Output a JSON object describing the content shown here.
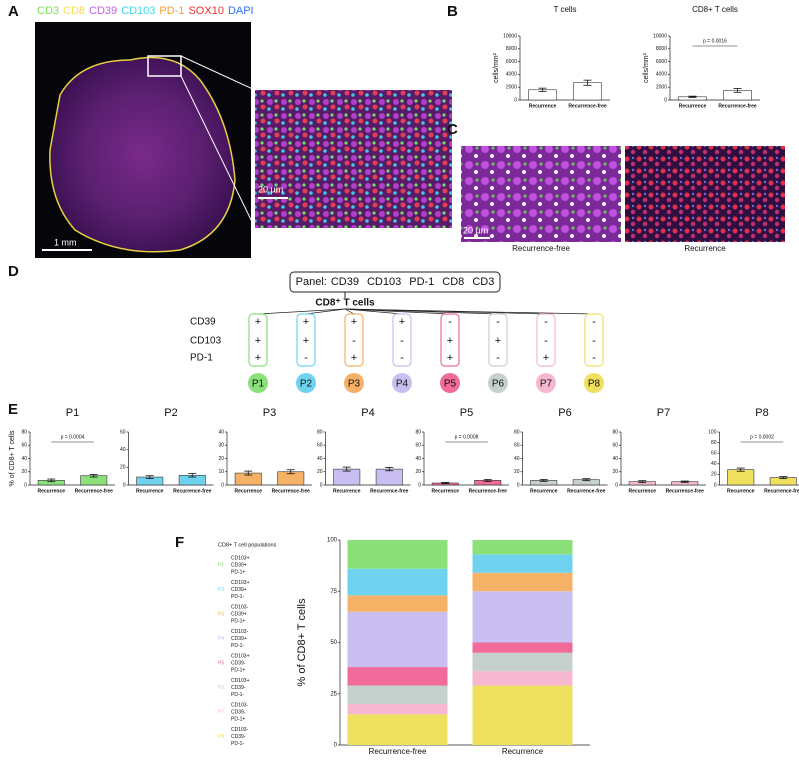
{
  "panel_labels": [
    "A",
    "B",
    "C",
    "D",
    "E",
    "F"
  ],
  "panel_a": {
    "channels": [
      {
        "label": "CD3",
        "color": "#7be05a"
      },
      {
        "label": "CD8",
        "color": "#f2e04a"
      },
      {
        "label": "CD39",
        "color": "#c060e0"
      },
      {
        "label": "CD103",
        "color": "#40d8e8"
      },
      {
        "label": "PD-1",
        "color": "#f5a030"
      },
      {
        "label": "SOX10",
        "color": "#f03030"
      },
      {
        "label": "DAPI",
        "color": "#3070f0"
      }
    ],
    "scale_bar": "1 mm",
    "inset_scale_bar": "20 µm"
  },
  "panel_c": {
    "scale_bar": "20 µm",
    "captions": [
      "Recurrence-free",
      "Recurrence"
    ]
  },
  "panel_d": {
    "panel_title": "Panel:",
    "panel_markers": [
      "CD39",
      "CD103",
      "PD-1",
      "CD8",
      "CD3"
    ],
    "root": "CD8⁺ T cells",
    "markers": [
      "CD39",
      "CD103",
      "PD-1"
    ],
    "populations": [
      {
        "name": "P1",
        "color": "#8be07a",
        "signs": [
          "+",
          "+",
          "+"
        ]
      },
      {
        "name": "P2",
        "color": "#6fd3f0",
        "signs": [
          "+",
          "+",
          "-"
        ]
      },
      {
        "name": "P3",
        "color": "#f5b266",
        "signs": [
          "+",
          "-",
          "+"
        ]
      },
      {
        "name": "P4",
        "color": "#c8bff0",
        "signs": [
          "+",
          "-",
          "-"
        ]
      },
      {
        "name": "P5",
        "color": "#f06a9a",
        "signs": [
          "-",
          "+",
          "+"
        ]
      },
      {
        "name": "P6",
        "color": "#c6d0cc",
        "signs": [
          "-",
          "+",
          "-"
        ]
      },
      {
        "name": "P7",
        "color": "#f5b8d0",
        "signs": [
          "-",
          "-",
          "+"
        ]
      },
      {
        "name": "P8",
        "color": "#f0e060",
        "signs": [
          "-",
          "-",
          "-"
        ]
      }
    ]
  },
  "chart_data": [
    {
      "type": "bar",
      "title": "T cells",
      "ylabel": "cells/mm²",
      "categories": [
        "Recurrence",
        "Recurrence-free"
      ],
      "values": [
        1600,
        2700
      ],
      "errors": [
        250,
        400
      ],
      "color": "#ffffff",
      "ylim": [
        0,
        10000
      ],
      "yticks": [
        0,
        2000,
        4000,
        6000,
        8000,
        10000
      ]
    },
    {
      "type": "bar",
      "title": "CD8+ T cells",
      "ylabel": "cells/mm²",
      "categories": [
        "Recurrence",
        "Recurrence-free"
      ],
      "values": [
        500,
        1500
      ],
      "errors": [
        100,
        300
      ],
      "color": "#ffffff",
      "ylim": [
        0,
        10000
      ],
      "yticks": [
        0,
        2000,
        4000,
        6000,
        8000,
        10000
      ],
      "annotation": "p = 0.0016"
    },
    {
      "type": "bar",
      "title": "P1",
      "ylabel": "% of CD8+ T cells",
      "categories": [
        "Recurrence",
        "Recurrence-free"
      ],
      "values": [
        7,
        14
      ],
      "errors": [
        2,
        2
      ],
      "color": "#8be07a",
      "ylim": [
        0,
        80
      ],
      "yticks": [
        0,
        20,
        40,
        60,
        80
      ],
      "annotation": "p = 0.0004"
    },
    {
      "type": "bar",
      "title": "P2",
      "categories": [
        "Recurrence",
        "Recurrence-free"
      ],
      "values": [
        9,
        11
      ],
      "errors": [
        1.5,
        2
      ],
      "color": "#6fd3f0",
      "ylim": [
        0,
        60
      ],
      "yticks": [
        0,
        20,
        40,
        60
      ]
    },
    {
      "type": "bar",
      "title": "P3",
      "categories": [
        "Recurrence",
        "Recurrence-free"
      ],
      "values": [
        9,
        10
      ],
      "errors": [
        1.5,
        1.5
      ],
      "color": "#f5b266",
      "ylim": [
        0,
        40
      ],
      "yticks": [
        0,
        10,
        20,
        30,
        40
      ]
    },
    {
      "type": "bar",
      "title": "P4",
      "categories": [
        "Recurrence",
        "Recurrence-free"
      ],
      "values": [
        24,
        24
      ],
      "errors": [
        3,
        2.5
      ],
      "color": "#c8bff0",
      "ylim": [
        0,
        80
      ],
      "yticks": [
        0,
        20,
        40,
        60,
        80
      ]
    },
    {
      "type": "bar",
      "title": "P5",
      "categories": [
        "Recurrence",
        "Recurrence-free"
      ],
      "values": [
        3,
        7
      ],
      "errors": [
        1,
        1.5
      ],
      "color": "#f06a9a",
      "ylim": [
        0,
        80
      ],
      "yticks": [
        0,
        20,
        40,
        60,
        80
      ],
      "annotation": "p = 0.0008"
    },
    {
      "type": "bar",
      "title": "P6",
      "categories": [
        "Recurrence",
        "Recurrence-free"
      ],
      "values": [
        7,
        8
      ],
      "errors": [
        1.5,
        1.5
      ],
      "color": "#c6d0cc",
      "ylim": [
        0,
        80
      ],
      "yticks": [
        0,
        20,
        40,
        60,
        80
      ]
    },
    {
      "type": "bar",
      "title": "P7",
      "categories": [
        "Recurrence",
        "Recurrence-free"
      ],
      "values": [
        5,
        5
      ],
      "errors": [
        1.5,
        1
      ],
      "color": "#f5b8d0",
      "ylim": [
        0,
        80
      ],
      "yticks": [
        0,
        20,
        40,
        60,
        80
      ]
    },
    {
      "type": "bar",
      "title": "P8",
      "categories": [
        "Recurrence",
        "Recurrence-free"
      ],
      "values": [
        29,
        14
      ],
      "errors": [
        3,
        2
      ],
      "color": "#f0e060",
      "ylim": [
        0,
        100
      ],
      "yticks": [
        0,
        20,
        40,
        60,
        80,
        100
      ],
      "annotation": "p = 0.0002"
    },
    {
      "type": "stacked_bar",
      "ylabel": "% of CD8+ T cells",
      "legend_title": "CD8+ T cell populations",
      "categories": [
        "Recurrence-free",
        "Recurrence"
      ],
      "ylim": [
        0,
        100
      ],
      "yticks": [
        0,
        25,
        50,
        75,
        100
      ],
      "series": [
        {
          "name": "P1",
          "color": "#8be07a",
          "description": [
            "CD103+",
            "CD39+",
            "PD-1+"
          ],
          "values": [
            14,
            7
          ]
        },
        {
          "name": "P2",
          "color": "#6fd3f0",
          "description": [
            "CD103+",
            "CD39+",
            "PD-1-"
          ],
          "values": [
            13,
            9
          ]
        },
        {
          "name": "P3",
          "color": "#f5b266",
          "description": [
            "CD103-",
            "CD39+",
            "PD-1+"
          ],
          "values": [
            8,
            9
          ]
        },
        {
          "name": "P4",
          "color": "#c8bff0",
          "description": [
            "CD103-",
            "CD39+",
            "PD-1-"
          ],
          "values": [
            27,
            25
          ]
        },
        {
          "name": "P5",
          "color": "#f06a9a",
          "description": [
            "CD103+",
            "CD39-",
            "PD-1+"
          ],
          "values": [
            9,
            5
          ]
        },
        {
          "name": "P6",
          "color": "#c6d0cc",
          "description": [
            "CD103+",
            "CD39-",
            "PD-1-"
          ],
          "values": [
            9,
            9
          ]
        },
        {
          "name": "P7",
          "color": "#f5b8d0",
          "description": [
            "CD103-",
            "CD39-",
            "PD-1+"
          ],
          "values": [
            5,
            7
          ]
        },
        {
          "name": "P8",
          "color": "#f0e060",
          "description": [
            "CD103-",
            "CD39-",
            "PD-1-"
          ],
          "values": [
            15,
            29
          ]
        }
      ]
    }
  ]
}
